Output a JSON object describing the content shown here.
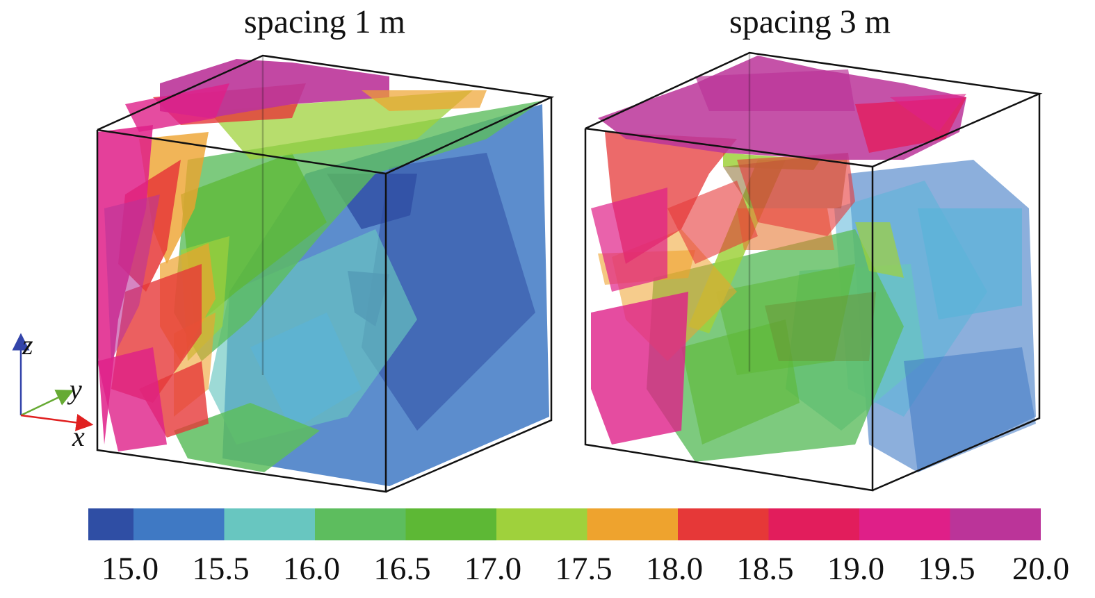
{
  "panels": {
    "left_title": "spacing 1 m",
    "right_title": "spacing 3 m"
  },
  "axes": {
    "x": "x",
    "y": "y",
    "z": "z"
  },
  "axis_colors": {
    "x": "#e02020",
    "y": "#66aa33",
    "z": "#3344aa"
  },
  "colorbar": {
    "tick_labels": [
      "15.0",
      "15.5",
      "16.0",
      "16.5",
      "17.0",
      "17.5",
      "18.0",
      "18.5",
      "19.0",
      "19.5",
      "20.0"
    ],
    "colors": [
      "#2f4ea4",
      "#3f79c4",
      "#68c6c0",
      "#5dbd5e",
      "#5db835",
      "#9fd13c",
      "#eea32e",
      "#e63838",
      "#e21d5c",
      "#df1f88",
      "#bb3499"
    ]
  }
}
